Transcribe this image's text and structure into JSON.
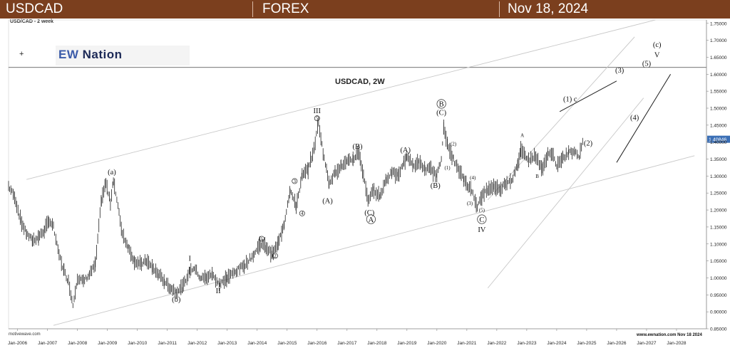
{
  "header": {
    "symbol": "USDCAD",
    "market": "FOREX",
    "date": "Nov 18, 2024"
  },
  "chart_subtitle": "USD/CAD - 2 week",
  "logo": {
    "part1": "EW",
    "part2": "Nation"
  },
  "footer": {
    "left": "motivewave.com",
    "right": "www.ewnation.com Nov 18 2024"
  },
  "chart_data": {
    "type": "line",
    "title": "USDCAD, 2W",
    "last_price_label": "1.40846",
    "last_price": 1.40846,
    "ylim": [
      0.85,
      1.76
    ],
    "y_ticks": [
      "0.85000",
      "0.90000",
      "0.95000",
      "1.00000",
      "1.05000",
      "1.10000",
      "1.15000",
      "1.20000",
      "1.25000",
      "1.30000",
      "1.35000",
      "1.40000",
      "1.45000",
      "1.50000",
      "1.55000",
      "1.60000",
      "1.65000",
      "1.70000",
      "1.75000"
    ],
    "x_ticks": [
      "Jan-2006",
      "Jan-2007",
      "Jan-2008",
      "Jan-2009",
      "Jan-2010",
      "Jan-2011",
      "Jan-2012",
      "Jan-2013",
      "Jan-2014",
      "Jan-2015",
      "Jan-2016",
      "Jan-2017",
      "Jan-2018",
      "Jan-2019",
      "Jan-2020",
      "Jan-2021",
      "Jan-2022",
      "Jan-2023",
      "Jan-2024",
      "Jan-2025",
      "Jan-2026",
      "Jan-2027",
      "Jan-2028"
    ],
    "xlim": [
      2005.7,
      2029.0
    ],
    "horizontal_line": 1.62,
    "price_path": [
      [
        2005.7,
        1.27
      ],
      [
        2005.9,
        1.24
      ],
      [
        2006.1,
        1.17
      ],
      [
        2006.3,
        1.13
      ],
      [
        2006.5,
        1.11
      ],
      [
        2006.7,
        1.12
      ],
      [
        2006.9,
        1.14
      ],
      [
        2007.05,
        1.17
      ],
      [
        2007.2,
        1.15
      ],
      [
        2007.35,
        1.08
      ],
      [
        2007.55,
        1.02
      ],
      [
        2007.7,
        0.99
      ],
      [
        2007.85,
        0.92
      ],
      [
        2008.0,
        1.0
      ],
      [
        2008.2,
        0.99
      ],
      [
        2008.4,
        1.01
      ],
      [
        2008.6,
        1.04
      ],
      [
        2008.8,
        1.23
      ],
      [
        2008.95,
        1.28
      ],
      [
        2009.1,
        1.22
      ],
      [
        2009.2,
        1.29
      ],
      [
        2009.35,
        1.21
      ],
      [
        2009.5,
        1.13
      ],
      [
        2009.7,
        1.09
      ],
      [
        2009.9,
        1.05
      ],
      [
        2010.1,
        1.04
      ],
      [
        2010.3,
        1.05
      ],
      [
        2010.5,
        1.03
      ],
      [
        2010.7,
        1.01
      ],
      [
        2010.9,
        0.99
      ],
      [
        2011.1,
        0.97
      ],
      [
        2011.3,
        0.96
      ],
      [
        2011.5,
        0.97
      ],
      [
        2011.75,
        1.02
      ],
      [
        2011.9,
        1.03
      ],
      [
        2012.1,
        1.0
      ],
      [
        2012.3,
        1.0
      ],
      [
        2012.5,
        1.01
      ],
      [
        2012.75,
        0.98
      ],
      [
        2013.0,
        1.0
      ],
      [
        2013.3,
        1.02
      ],
      [
        2013.6,
        1.04
      ],
      [
        2013.9,
        1.07
      ],
      [
        2014.1,
        1.1
      ],
      [
        2014.3,
        1.09
      ],
      [
        2014.5,
        1.07
      ],
      [
        2014.7,
        1.1
      ],
      [
        2014.9,
        1.16
      ],
      [
        2015.1,
        1.26
      ],
      [
        2015.3,
        1.21
      ],
      [
        2015.5,
        1.3
      ],
      [
        2015.7,
        1.32
      ],
      [
        2015.9,
        1.38
      ],
      [
        2016.05,
        1.46
      ],
      [
        2016.2,
        1.37
      ],
      [
        2016.4,
        1.28
      ],
      [
        2016.6,
        1.31
      ],
      [
        2016.8,
        1.33
      ],
      [
        2017.0,
        1.34
      ],
      [
        2017.2,
        1.35
      ],
      [
        2017.4,
        1.37
      ],
      [
        2017.55,
        1.3
      ],
      [
        2017.7,
        1.23
      ],
      [
        2017.9,
        1.26
      ],
      [
        2018.1,
        1.24
      ],
      [
        2018.3,
        1.29
      ],
      [
        2018.5,
        1.31
      ],
      [
        2018.7,
        1.3
      ],
      [
        2018.9,
        1.34
      ],
      [
        2019.0,
        1.36
      ],
      [
        2019.2,
        1.33
      ],
      [
        2019.4,
        1.34
      ],
      [
        2019.6,
        1.32
      ],
      [
        2019.8,
        1.32
      ],
      [
        2020.0,
        1.3
      ],
      [
        2020.15,
        1.35
      ],
      [
        2020.23,
        1.45
      ],
      [
        2020.35,
        1.39
      ],
      [
        2020.55,
        1.35
      ],
      [
        2020.7,
        1.32
      ],
      [
        2020.9,
        1.29
      ],
      [
        2021.05,
        1.27
      ],
      [
        2021.2,
        1.25
      ],
      [
        2021.35,
        1.21
      ],
      [
        2021.5,
        1.24
      ],
      [
        2021.7,
        1.26
      ],
      [
        2021.9,
        1.27
      ],
      [
        2022.1,
        1.26
      ],
      [
        2022.3,
        1.28
      ],
      [
        2022.5,
        1.29
      ],
      [
        2022.7,
        1.33
      ],
      [
        2022.8,
        1.38
      ],
      [
        2022.95,
        1.36
      ],
      [
        2023.1,
        1.35
      ],
      [
        2023.3,
        1.36
      ],
      [
        2023.5,
        1.32
      ],
      [
        2023.7,
        1.36
      ],
      [
        2023.85,
        1.37
      ],
      [
        2024.0,
        1.33
      ],
      [
        2024.2,
        1.35
      ],
      [
        2024.4,
        1.37
      ],
      [
        2024.6,
        1.37
      ],
      [
        2024.75,
        1.36
      ],
      [
        2024.88,
        1.40846
      ]
    ],
    "channel_lines": [
      {
        "name": "upper-channel",
        "from": [
          2006.3,
          1.29
        ],
        "to": [
          2027.3,
          1.76
        ]
      },
      {
        "name": "lower-channel",
        "from": [
          2007.2,
          0.86
        ],
        "to": [
          2028.6,
          1.36
        ]
      },
      {
        "name": "projection-channel-upper",
        "from": [
          2021.7,
          1.23
        ],
        "to": [
          2026.6,
          1.71
        ]
      },
      {
        "name": "projection-channel-lower",
        "from": [
          2021.7,
          0.97
        ],
        "to": [
          2026.9,
          1.53
        ]
      }
    ],
    "projection_lines": [
      {
        "name": "projection-wave-1-3",
        "from": [
          2024.1,
          1.49
        ],
        "to": [
          2026.0,
          1.58
        ]
      },
      {
        "name": "projection-wave-4-5",
        "from": [
          2026.0,
          1.34
        ],
        "to": [
          2027.8,
          1.6
        ]
      }
    ],
    "annotations": [
      {
        "text": "(a)",
        "x": 2009.15,
        "y": 1.305,
        "circled": false,
        "size": "m"
      },
      {
        "text": "(b)",
        "x": 2011.3,
        "y": 0.93,
        "circled": false,
        "size": "m"
      },
      {
        "text": "I",
        "x": 2011.75,
        "y": 1.05,
        "circled": false,
        "size": "m"
      },
      {
        "text": "II",
        "x": 2012.7,
        "y": 0.955,
        "circled": false,
        "size": "m"
      },
      {
        "text": "1",
        "x": 2014.15,
        "y": 1.11,
        "circled": true,
        "size": "s"
      },
      {
        "text": "2",
        "x": 2014.6,
        "y": 1.06,
        "circled": true,
        "size": "s"
      },
      {
        "text": "3",
        "x": 2015.25,
        "y": 1.28,
        "circled": true,
        "size": "s"
      },
      {
        "text": "4",
        "x": 2015.5,
        "y": 1.185,
        "circled": true,
        "size": "s"
      },
      {
        "text": "III",
        "x": 2016.0,
        "y": 1.485,
        "circled": false,
        "size": "m"
      },
      {
        "text": "5",
        "x": 2016.0,
        "y": 1.465,
        "circled": true,
        "size": "s"
      },
      {
        "text": "(A)",
        "x": 2016.35,
        "y": 1.22,
        "circled": false,
        "size": "m"
      },
      {
        "text": "(B)",
        "x": 2017.35,
        "y": 1.38,
        "circled": false,
        "size": "m"
      },
      {
        "text": "(C)",
        "x": 2017.75,
        "y": 1.185,
        "circled": false,
        "size": "m"
      },
      {
        "text": "A",
        "x": 2017.8,
        "y": 1.165,
        "circled": true,
        "size": "m"
      },
      {
        "text": "(A)",
        "x": 2018.95,
        "y": 1.37,
        "circled": false,
        "size": "m"
      },
      {
        "text": "(B)",
        "x": 2019.95,
        "y": 1.265,
        "circled": false,
        "size": "m"
      },
      {
        "text": "B",
        "x": 2020.15,
        "y": 1.505,
        "circled": true,
        "size": "m"
      },
      {
        "text": "(C)",
        "x": 2020.15,
        "y": 1.48,
        "circled": false,
        "size": "m"
      },
      {
        "text": "(1)",
        "x": 2020.35,
        "y": 1.32,
        "circled": false,
        "size": "s"
      },
      {
        "text": "(2)",
        "x": 2020.55,
        "y": 1.39,
        "circled": false,
        "size": "s"
      },
      {
        "text": "(3)",
        "x": 2021.1,
        "y": 1.215,
        "circled": false,
        "size": "s"
      },
      {
        "text": "(4)",
        "x": 2021.2,
        "y": 1.29,
        "circled": false,
        "size": "s"
      },
      {
        "text": "(5)",
        "x": 2021.5,
        "y": 1.195,
        "circled": false,
        "size": "s"
      },
      {
        "text": "C",
        "x": 2021.5,
        "y": 1.165,
        "circled": true,
        "size": "m"
      },
      {
        "text": "IV",
        "x": 2021.5,
        "y": 1.135,
        "circled": false,
        "size": "m"
      },
      {
        "text": "A",
        "x": 2022.85,
        "y": 1.415,
        "circled": false,
        "size": "s"
      },
      {
        "text": "B",
        "x": 2023.35,
        "y": 1.295,
        "circled": false,
        "size": "s"
      },
      {
        "text": "(1) c",
        "x": 2024.45,
        "y": 1.52,
        "circled": false,
        "size": "m"
      },
      {
        "text": "(2)",
        "x": 2025.05,
        "y": 1.39,
        "circled": false,
        "size": "m"
      },
      {
        "text": "(3)",
        "x": 2026.1,
        "y": 1.605,
        "circled": false,
        "size": "m"
      },
      {
        "text": "(4)",
        "x": 2026.6,
        "y": 1.465,
        "circled": false,
        "size": "m"
      },
      {
        "text": "(5)",
        "x": 2027.0,
        "y": 1.625,
        "circled": false,
        "size": "m"
      },
      {
        "text": "V",
        "x": 2027.35,
        "y": 1.65,
        "circled": false,
        "size": "m"
      },
      {
        "text": "(c)",
        "x": 2027.35,
        "y": 1.68,
        "circled": false,
        "size": "m"
      }
    ]
  }
}
